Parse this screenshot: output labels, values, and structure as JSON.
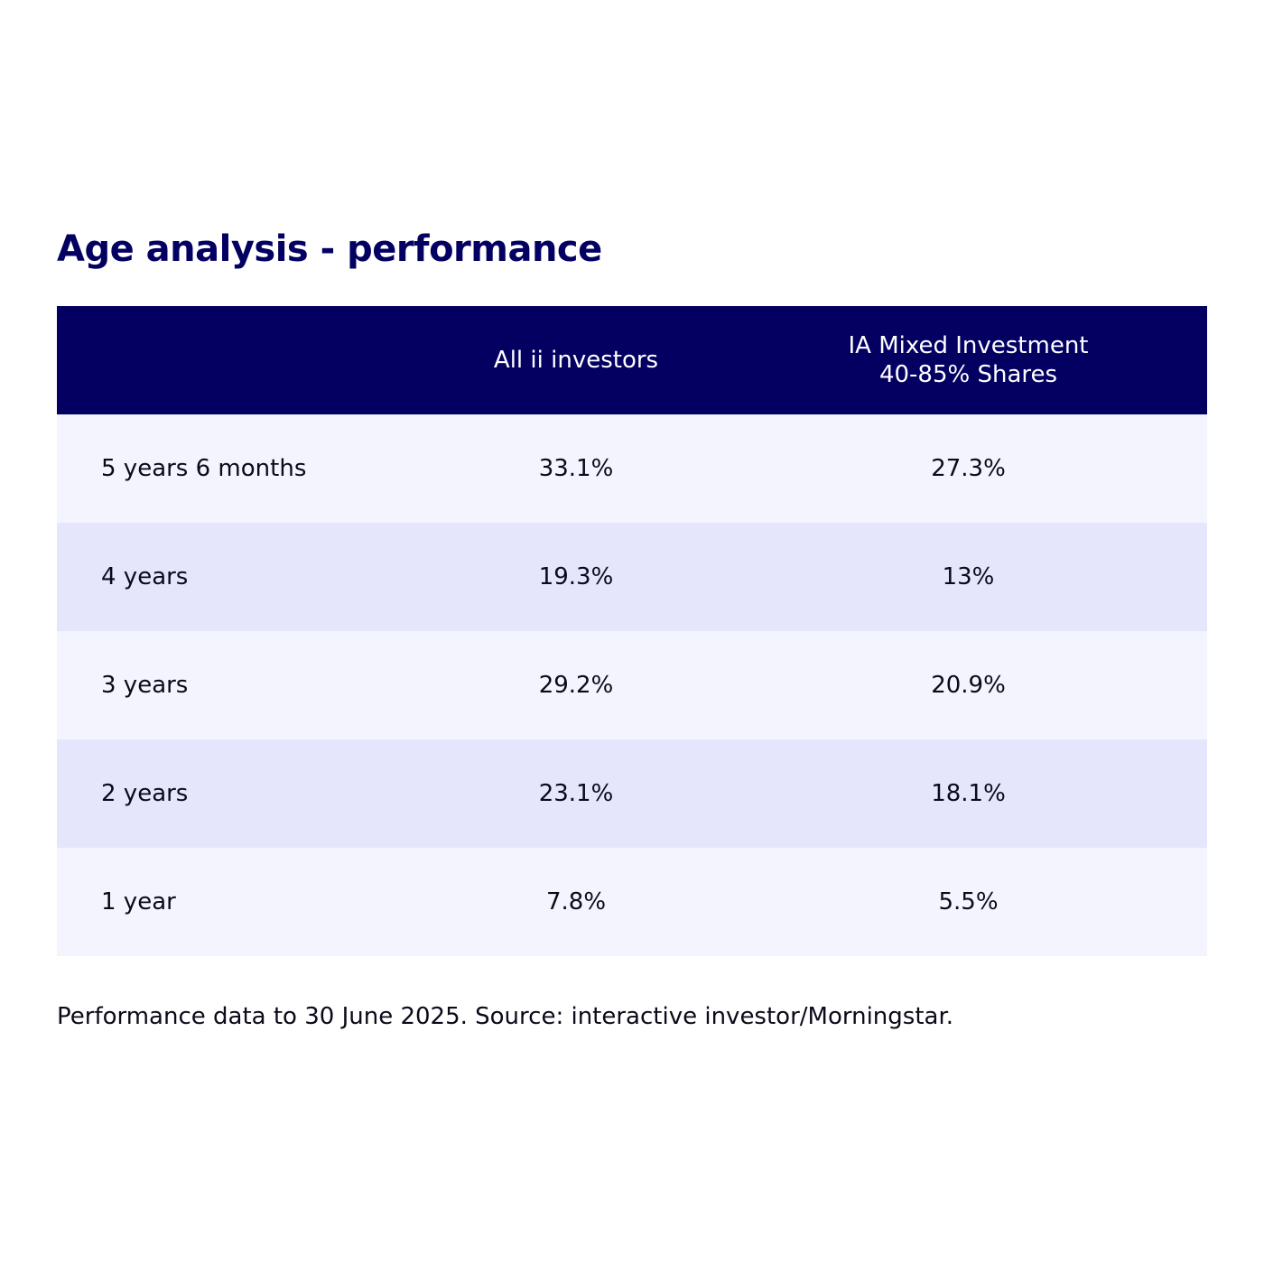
{
  "chart_data": {
    "type": "table",
    "title": "Age analysis - performance",
    "columns": [
      "",
      "All ii investors",
      "IA Mixed Investment\n40-85% Shares"
    ],
    "rows": [
      {
        "label": "5 years 6 months",
        "values": [
          "33.1%",
          "27.3%"
        ]
      },
      {
        "label": "4 years",
        "values": [
          "19.3%",
          "13%"
        ]
      },
      {
        "label": "3 years",
        "values": [
          "29.2%",
          "20.9%"
        ]
      },
      {
        "label": "2 years",
        "values": [
          "23.1%",
          "18.1%"
        ]
      },
      {
        "label": "1 year",
        "values": [
          "7.8%",
          "5.5%"
        ]
      }
    ],
    "series": [
      {
        "name": "All ii investors",
        "values": [
          33.1,
          19.3,
          29.2,
          23.1,
          7.8
        ]
      },
      {
        "name": "IA Mixed Investment 40-85% Shares",
        "values": [
          27.3,
          13,
          20.9,
          18.1,
          5.5
        ]
      }
    ],
    "footnote": "Performance data to 30 June 2025. Source: interactive investor/Morningstar."
  },
  "colors": {
    "title": "#030062",
    "header_bg": "#030062",
    "header_text": "#ffffff",
    "row_light": "#f3f4fe",
    "row_shaded": "#e5e6fc",
    "body_text": "#0a0a1a"
  }
}
